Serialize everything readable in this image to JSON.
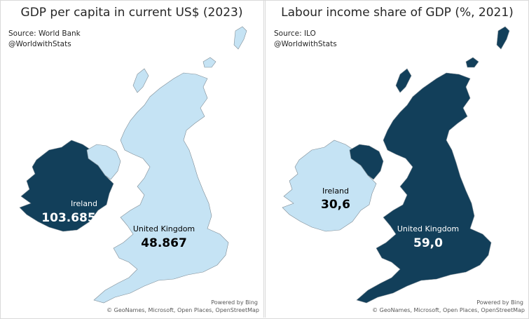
{
  "panels": [
    {
      "title": "GDP per capita in current US$ (2023)",
      "source": "Source: World Bank",
      "handle": "@WorldwithStats",
      "ireland": {
        "name": "Ireland",
        "value": "103.685",
        "color": "#123f5a",
        "text_color": "#ffffff"
      },
      "uk": {
        "name": "United Kingdom",
        "value": "48.867",
        "color": "#c5e3f4",
        "text_color": "#000000"
      },
      "northern_ireland_color": "#c5e3f4",
      "powered_by": "Powered by Bing",
      "attribution": "© GeoNames, Microsoft, Open Places, OpenStreetMap"
    },
    {
      "title": "Labour income share of GDP (%, 2021)",
      "source": "Source: ILO",
      "handle": "@WorldwithStats",
      "ireland": {
        "name": "Ireland",
        "value": "30,6",
        "color": "#c5e3f4",
        "text_color": "#000000"
      },
      "uk": {
        "name": "United Kingdom",
        "value": "59,0",
        "color": "#123f5a",
        "text_color": "#ffffff"
      },
      "northern_ireland_color": "#123f5a",
      "powered_by": "Powered by Bing",
      "attribution": "© GeoNames, Microsoft, Open Places, OpenStreetMap"
    }
  ]
}
